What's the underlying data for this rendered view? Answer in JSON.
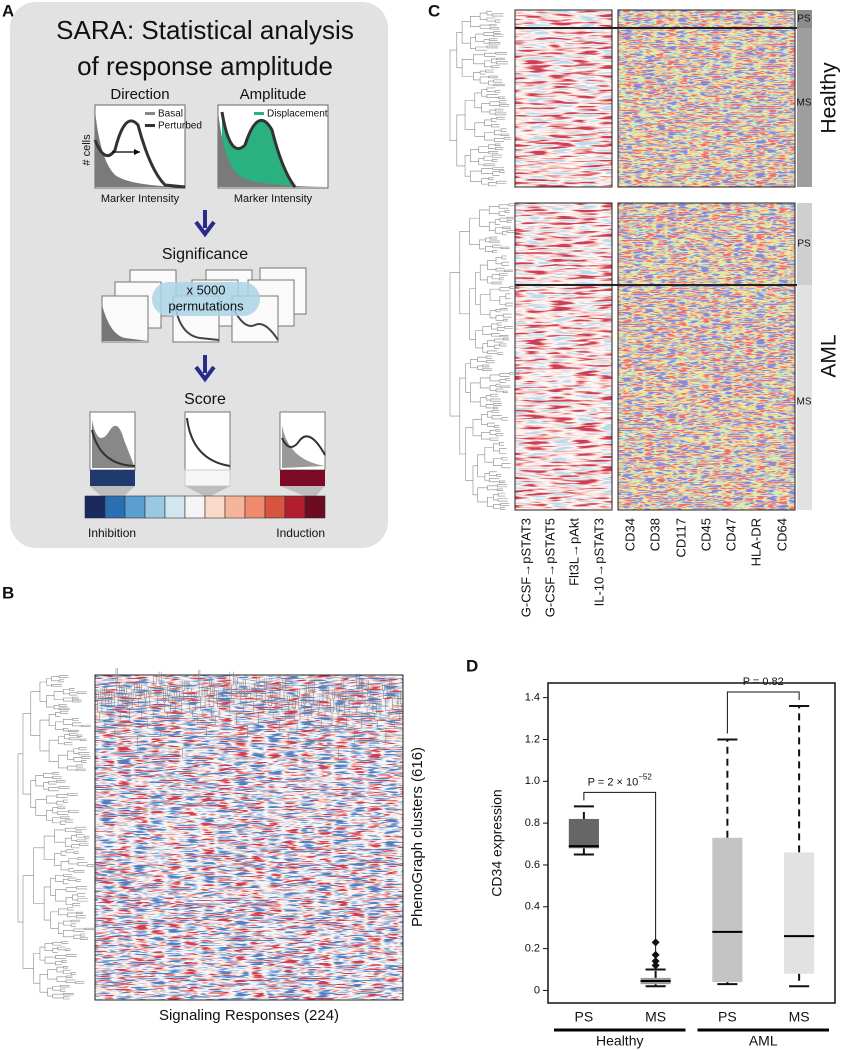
{
  "panel_a": {
    "label": "A",
    "title_line1": "SARA:  Statistical analysis",
    "title_line2": "of response amplitude",
    "direction": "Direction",
    "amplitude": "Amplitude",
    "y_label": "# cells",
    "legend": [
      "Basal",
      "Perturbed",
      "Displacement"
    ],
    "x_label": "Marker Intensity",
    "significance": "Significance",
    "multiplier": "x 5000",
    "permutations": "permutations",
    "score": "Score",
    "inhibition": "Inhibition",
    "induction": "Induction"
  },
  "panel_b": {
    "label": "B",
    "x_label": "Signaling Responses (224)",
    "y_label": "PhenoGraph clusters (616)"
  },
  "panel_c": {
    "label": "C",
    "columns": [
      "G-CSF→pSTAT3",
      "G-CSF→pSTAT5",
      "Flt3L→pAkt",
      "IL-10→pSTAT3",
      "CD34",
      "CD38",
      "CD117",
      "CD45",
      "CD47",
      "HLA-DR",
      "CD64"
    ],
    "groups": [
      {
        "name": "Healthy",
        "subgroups": [
          "PS",
          "MS"
        ]
      },
      {
        "name": "AML",
        "subgroups": [
          "PS",
          "MS"
        ]
      }
    ]
  },
  "chart_data": {
    "type": "box",
    "label": "D",
    "y_label": "CD34 expression",
    "categories": [
      "PS",
      "MS",
      "PS",
      "MS"
    ],
    "groups": [
      "Healthy",
      "AML"
    ],
    "boxes": [
      {
        "whislo": 0.65,
        "q1": 0.68,
        "median": 0.69,
        "q3": 0.82,
        "whishi": 0.88,
        "fliers": []
      },
      {
        "whislo": 0.02,
        "q1": 0.03,
        "median": 0.045,
        "q3": 0.06,
        "whishi": 0.1,
        "fliers": [
          0.12,
          0.14,
          0.17,
          0.23
        ]
      },
      {
        "whislo": 0.03,
        "q1": 0.04,
        "median": 0.28,
        "q3": 0.73,
        "whishi": 1.2,
        "fliers": []
      },
      {
        "whislo": 0.02,
        "q1": 0.08,
        "median": 0.26,
        "q3": 0.66,
        "whishi": 1.36,
        "fliers": []
      }
    ],
    "colors": [
      "#666666",
      "#9a9a9a",
      "#c4c4c4",
      "#e2e2e2"
    ],
    "annotations": [
      {
        "text": "P = 2 × 10",
        "superscript": "−52"
      },
      {
        "text": "P = 0.82"
      }
    ],
    "ylim": [
      -0.06,
      1.47
    ],
    "yticks": [
      0,
      0.2,
      0.4,
      0.6,
      0.8,
      {
        "value": 1,
        "label": "1.0"
      },
      1.2,
      1.4
    ]
  }
}
